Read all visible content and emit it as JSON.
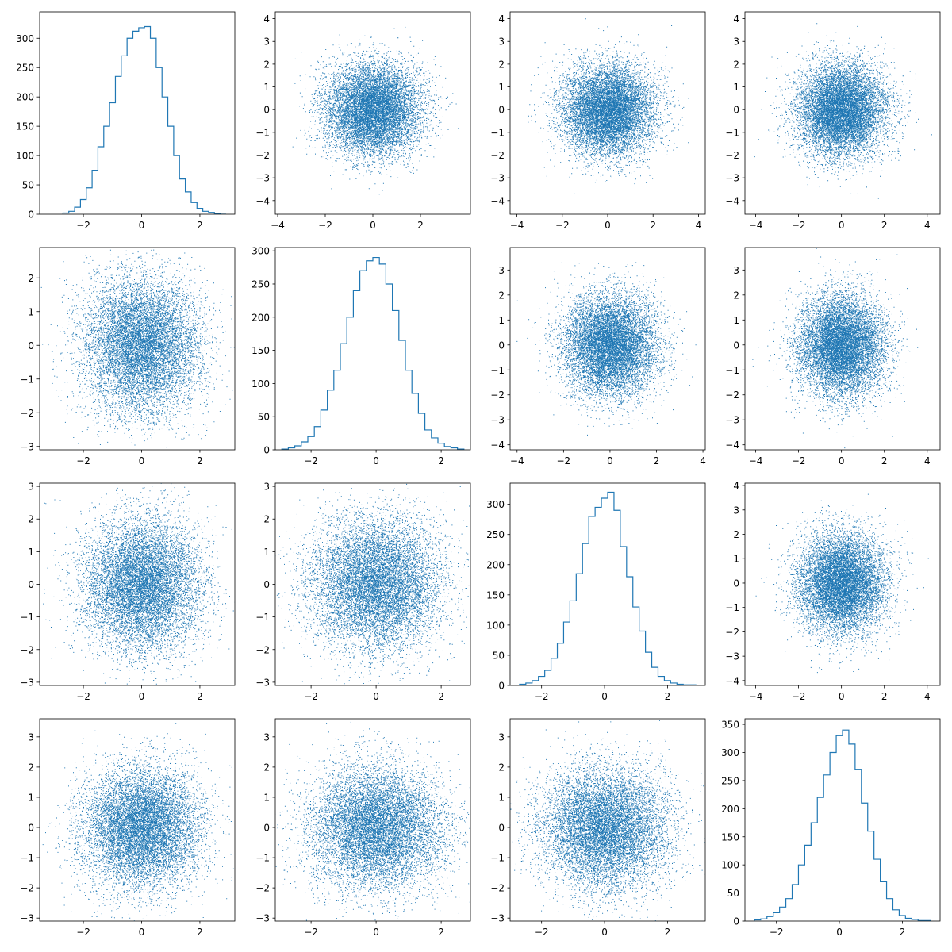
{
  "figure": {
    "rows": 4,
    "cols": 4,
    "series_color": "#1f77b4"
  },
  "chart_data": [
    {
      "type": "histogram",
      "row": 0,
      "col": 0,
      "xlim": [
        -3.5,
        3.2
      ],
      "ylim": [
        0,
        345
      ],
      "xticks": [
        -2,
        0,
        2
      ],
      "yticks": [
        0,
        50,
        100,
        150,
        200,
        250,
        300
      ],
      "bin_centers": [
        -2.6,
        -2.4,
        -2.2,
        -2.0,
        -1.8,
        -1.6,
        -1.4,
        -1.2,
        -1.0,
        -0.8,
        -0.6,
        -0.4,
        -0.2,
        0.0,
        0.2,
        0.4,
        0.6,
        0.8,
        1.0,
        1.2,
        1.4,
        1.6,
        1.8,
        2.0,
        2.2,
        2.4,
        2.6,
        2.8
      ],
      "counts": [
        2,
        5,
        12,
        25,
        45,
        75,
        115,
        150,
        190,
        235,
        270,
        300,
        312,
        318,
        320,
        300,
        250,
        200,
        150,
        100,
        60,
        38,
        20,
        10,
        5,
        3,
        1,
        0
      ]
    },
    {
      "type": "scatter",
      "row": 0,
      "col": 1,
      "n": 10000,
      "seed": 11,
      "xlim": [
        -4.1,
        4.1
      ],
      "ylim": [
        -4.6,
        4.3
      ],
      "xticks": [
        -4,
        -2,
        0,
        2
      ],
      "yticks": [
        -4,
        -3,
        -2,
        -1,
        0,
        1,
        2,
        3,
        4
      ]
    },
    {
      "type": "scatter",
      "row": 0,
      "col": 2,
      "n": 10000,
      "seed": 12,
      "xlim": [
        -4.3,
        4.3
      ],
      "ylim": [
        -4.6,
        4.3
      ],
      "xticks": [
        -4,
        -2,
        0,
        2,
        4
      ],
      "yticks": [
        -4,
        -3,
        -2,
        -1,
        0,
        1,
        2,
        3,
        4
      ]
    },
    {
      "type": "scatter",
      "row": 0,
      "col": 3,
      "n": 10000,
      "seed": 13,
      "xlim": [
        -4.5,
        4.6
      ],
      "ylim": [
        -4.6,
        4.3
      ],
      "xticks": [
        -4,
        -2,
        0,
        2,
        4
      ],
      "yticks": [
        -4,
        -3,
        -2,
        -1,
        0,
        1,
        2,
        3,
        4
      ]
    },
    {
      "type": "scatter",
      "row": 1,
      "col": 0,
      "n": 10000,
      "seed": 21,
      "xlim": [
        -3.5,
        3.2
      ],
      "ylim": [
        -3.1,
        2.9
      ],
      "xticks": [
        -2,
        0,
        2
      ],
      "yticks": [
        -3,
        -2,
        -1,
        0,
        1,
        2
      ]
    },
    {
      "type": "histogram",
      "row": 1,
      "col": 1,
      "xlim": [
        -3.1,
        2.9
      ],
      "ylim": [
        0,
        305
      ],
      "xticks": [
        -2,
        0,
        2
      ],
      "yticks": [
        0,
        50,
        100,
        150,
        200,
        250,
        300
      ],
      "bin_centers": [
        -2.8,
        -2.6,
        -2.4,
        -2.2,
        -2.0,
        -1.8,
        -1.6,
        -1.4,
        -1.2,
        -1.0,
        -0.8,
        -0.6,
        -0.4,
        -0.2,
        0.0,
        0.2,
        0.4,
        0.6,
        0.8,
        1.0,
        1.2,
        1.4,
        1.6,
        1.8,
        2.0,
        2.2,
        2.4,
        2.6
      ],
      "counts": [
        1,
        3,
        6,
        12,
        20,
        35,
        60,
        90,
        120,
        160,
        200,
        240,
        270,
        285,
        290,
        280,
        250,
        210,
        165,
        120,
        85,
        55,
        30,
        18,
        10,
        5,
        3,
        1
      ]
    },
    {
      "type": "scatter",
      "row": 1,
      "col": 2,
      "n": 10000,
      "seed": 23,
      "xlim": [
        -4.3,
        4.1
      ],
      "ylim": [
        -4.2,
        3.9
      ],
      "xticks": [
        -4,
        -2,
        0,
        2,
        4
      ],
      "yticks": [
        -4,
        -3,
        -2,
        -1,
        0,
        1,
        2,
        3
      ]
    },
    {
      "type": "scatter",
      "row": 1,
      "col": 3,
      "n": 10000,
      "seed": 24,
      "xlim": [
        -4.5,
        4.6
      ],
      "ylim": [
        -4.2,
        3.9
      ],
      "xticks": [
        -4,
        -2,
        0,
        2,
        4
      ],
      "yticks": [
        -4,
        -3,
        -2,
        -1,
        0,
        1,
        2,
        3
      ]
    },
    {
      "type": "scatter",
      "row": 2,
      "col": 0,
      "n": 10000,
      "seed": 31,
      "xlim": [
        -3.5,
        3.2
      ],
      "ylim": [
        -3.1,
        3.1
      ],
      "xticks": [
        -2,
        0,
        2
      ],
      "yticks": [
        -3,
        -2,
        -1,
        0,
        1,
        2,
        3
      ]
    },
    {
      "type": "scatter",
      "row": 2,
      "col": 1,
      "n": 10000,
      "seed": 32,
      "xlim": [
        -3.1,
        2.9
      ],
      "ylim": [
        -3.1,
        3.1
      ],
      "xticks": [
        -2,
        0,
        2
      ],
      "yticks": [
        -3,
        -2,
        -1,
        0,
        1,
        2,
        3
      ]
    },
    {
      "type": "histogram",
      "row": 2,
      "col": 2,
      "xlim": [
        -3.0,
        3.2
      ],
      "ylim": [
        0,
        335
      ],
      "xticks": [
        -2,
        0,
        2
      ],
      "yticks": [
        0,
        50,
        100,
        150,
        200,
        250,
        300
      ],
      "bin_centers": [
        -2.6,
        -2.4,
        -2.2,
        -2.0,
        -1.8,
        -1.6,
        -1.4,
        -1.2,
        -1.0,
        -0.8,
        -0.6,
        -0.4,
        -0.2,
        0.0,
        0.2,
        0.4,
        0.6,
        0.8,
        1.0,
        1.2,
        1.4,
        1.6,
        1.8,
        2.0,
        2.2,
        2.4,
        2.6,
        2.8
      ],
      "counts": [
        2,
        4,
        8,
        15,
        25,
        45,
        70,
        105,
        140,
        185,
        235,
        280,
        295,
        310,
        320,
        290,
        230,
        180,
        130,
        90,
        55,
        30,
        15,
        8,
        4,
        2,
        1,
        1
      ]
    },
    {
      "type": "scatter",
      "row": 2,
      "col": 3,
      "n": 10000,
      "seed": 34,
      "xlim": [
        -4.5,
        4.6
      ],
      "ylim": [
        -4.2,
        4.1
      ],
      "xticks": [
        -4,
        -2,
        0,
        2,
        4
      ],
      "yticks": [
        -4,
        -3,
        -2,
        -1,
        0,
        1,
        2,
        3,
        4
      ]
    },
    {
      "type": "scatter",
      "row": 3,
      "col": 0,
      "n": 10000,
      "seed": 41,
      "xlim": [
        -3.5,
        3.2
      ],
      "ylim": [
        -3.1,
        3.6
      ],
      "xticks": [
        -2,
        0,
        2
      ],
      "yticks": [
        -3,
        -2,
        -1,
        0,
        1,
        2,
        3
      ]
    },
    {
      "type": "scatter",
      "row": 3,
      "col": 1,
      "n": 10000,
      "seed": 42,
      "xlim": [
        -3.1,
        2.9
      ],
      "ylim": [
        -3.1,
        3.6
      ],
      "xticks": [
        -2,
        0,
        2
      ],
      "yticks": [
        -3,
        -2,
        -1,
        0,
        1,
        2,
        3
      ]
    },
    {
      "type": "scatter",
      "row": 3,
      "col": 2,
      "n": 10000,
      "seed": 43,
      "xlim": [
        -3.0,
        3.2
      ],
      "ylim": [
        -3.1,
        3.6
      ],
      "xticks": [
        -2,
        0,
        2
      ],
      "yticks": [
        -3,
        -2,
        -1,
        0,
        1,
        2,
        3
      ]
    },
    {
      "type": "histogram",
      "row": 3,
      "col": 3,
      "xlim": [
        -3.0,
        3.2
      ],
      "ylim": [
        0,
        360
      ],
      "xticks": [
        -2,
        0,
        2
      ],
      "yticks": [
        0,
        50,
        100,
        150,
        200,
        250,
        300,
        350
      ],
      "bin_centers": [
        -2.6,
        -2.4,
        -2.2,
        -2.0,
        -1.8,
        -1.6,
        -1.4,
        -1.2,
        -1.0,
        -0.8,
        -0.6,
        -0.4,
        -0.2,
        0.0,
        0.2,
        0.4,
        0.6,
        0.8,
        1.0,
        1.2,
        1.4,
        1.6,
        1.8,
        2.0,
        2.2,
        2.4,
        2.6,
        2.8
      ],
      "counts": [
        2,
        4,
        8,
        15,
        25,
        40,
        65,
        100,
        135,
        175,
        220,
        260,
        300,
        330,
        340,
        315,
        270,
        210,
        160,
        110,
        70,
        40,
        20,
        10,
        5,
        3,
        1,
        1
      ]
    }
  ]
}
